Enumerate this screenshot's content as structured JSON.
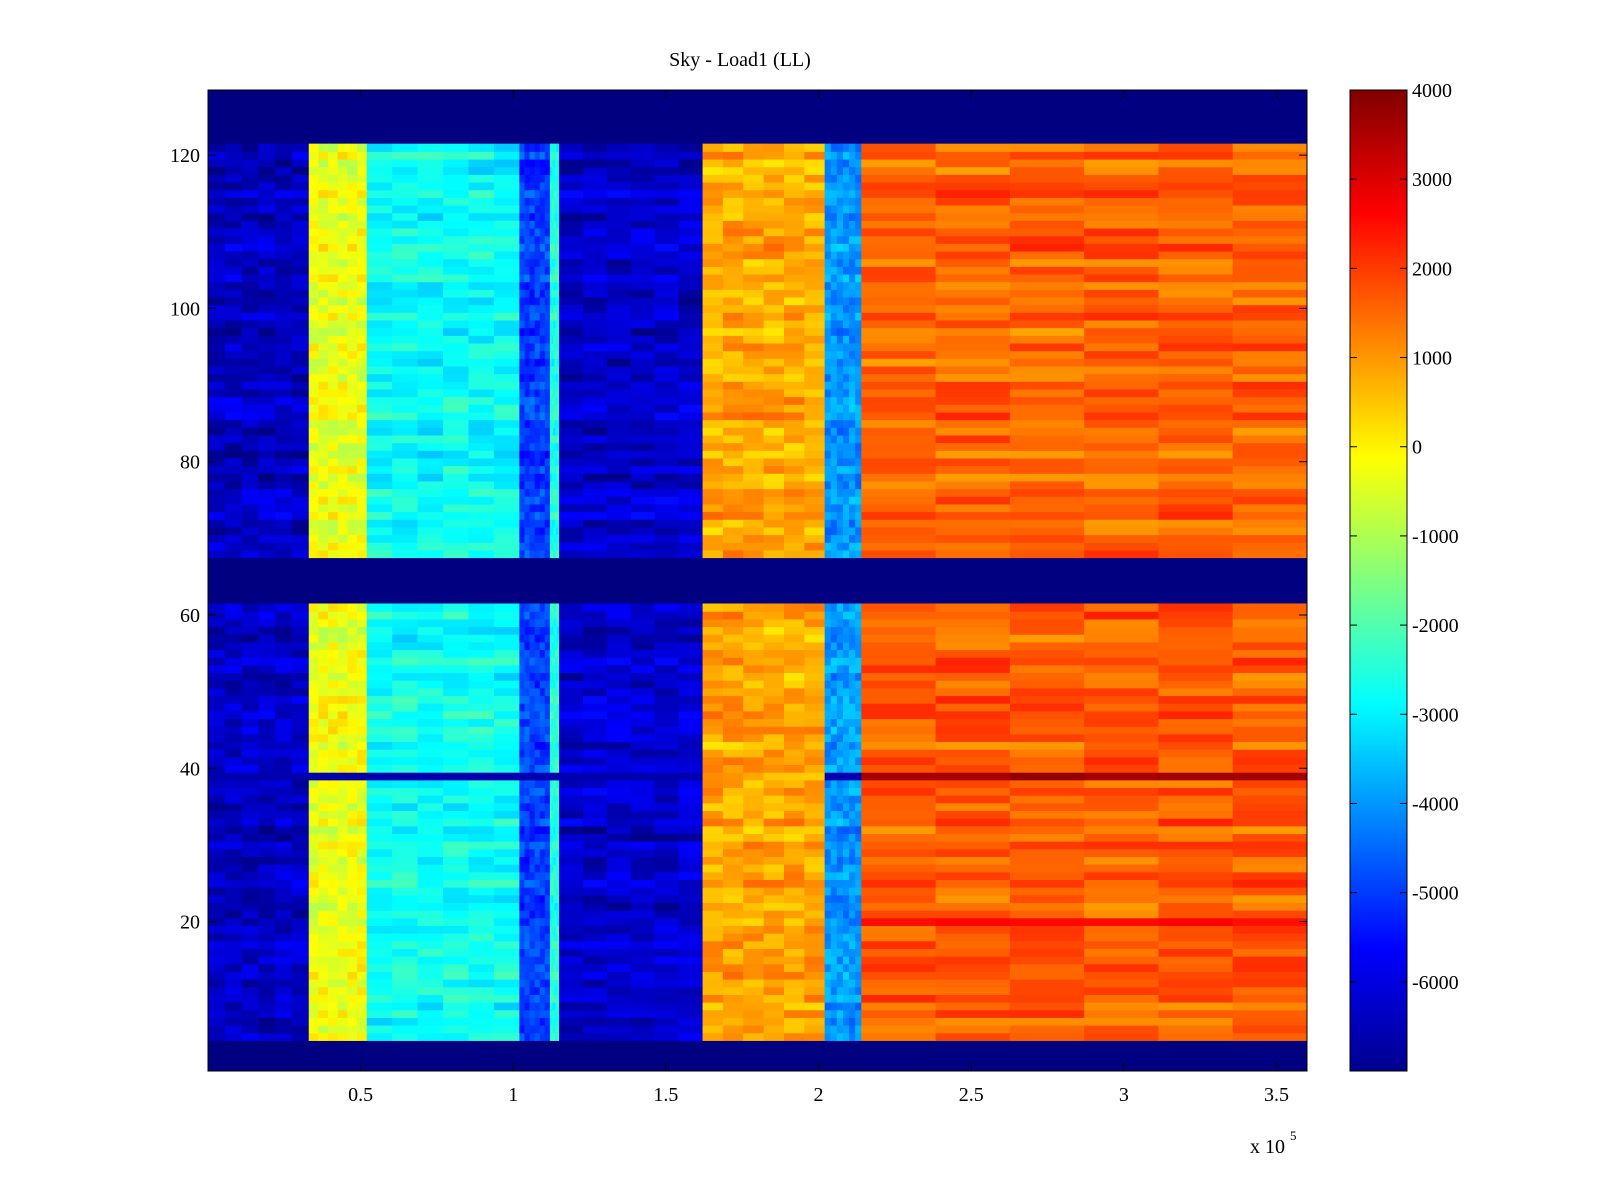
{
  "chart_data": {
    "type": "heatmap",
    "title": "Sky - Load1 (LL)",
    "xlabel": "",
    "ylabel": "",
    "x_multiplier_label": "x 10",
    "x_multiplier_exponent": "5",
    "xlim": [
      0,
      3.6
    ],
    "ylim": [
      0.5,
      128.5
    ],
    "x_ticks": [
      0.5,
      1,
      1.5,
      2,
      2.5,
      3,
      3.5
    ],
    "x_tick_labels": [
      "0.5",
      "1",
      "1.5",
      "2",
      "2.5",
      "3",
      "3.5"
    ],
    "y_ticks": [
      20,
      40,
      60,
      80,
      100,
      120
    ],
    "y_tick_labels": [
      "20",
      "40",
      "60",
      "80",
      "100",
      "120"
    ],
    "colorbar": {
      "colormap": "jet",
      "min": -7000,
      "max": 4000,
      "ticks": [
        4000,
        3000,
        2000,
        1000,
        0,
        -1000,
        -2000,
        -3000,
        -4000,
        -5000,
        -6000
      ],
      "tick_labels": [
        "4000",
        "3000",
        "2000",
        "1000",
        "0",
        "-1000",
        "-2000",
        "-3000",
        "-4000",
        "-5000",
        "-6000"
      ]
    },
    "background_value": -7000,
    "masked_row_ranges": [
      [
        0.5,
        4
      ],
      [
        61.5,
        67.5
      ],
      [
        121.5,
        128.5
      ]
    ],
    "column_bands": [
      {
        "x_start": 0.0,
        "x_end": 0.33,
        "value": -6300
      },
      {
        "x_start": 0.33,
        "x_end": 0.52,
        "value": -300
      },
      {
        "x_start": 0.52,
        "x_end": 1.02,
        "value": -2800
      },
      {
        "x_start": 1.02,
        "x_end": 1.12,
        "value": -5000
      },
      {
        "x_start": 1.12,
        "x_end": 1.15,
        "value": -2500
      },
      {
        "x_start": 1.15,
        "x_end": 1.62,
        "value": -6200
      },
      {
        "x_start": 1.62,
        "x_end": 2.02,
        "value": 800
      },
      {
        "x_start": 2.02,
        "x_end": 2.14,
        "value": -4000
      },
      {
        "x_start": 2.14,
        "x_end": 3.6,
        "value": 1600
      }
    ],
    "special_rows": [
      {
        "y": 39,
        "description": "anomalous row",
        "left_value": -6500,
        "right_value": 3700
      },
      {
        "y": 20,
        "description": "elevated row",
        "right_value": 2600
      }
    ]
  }
}
